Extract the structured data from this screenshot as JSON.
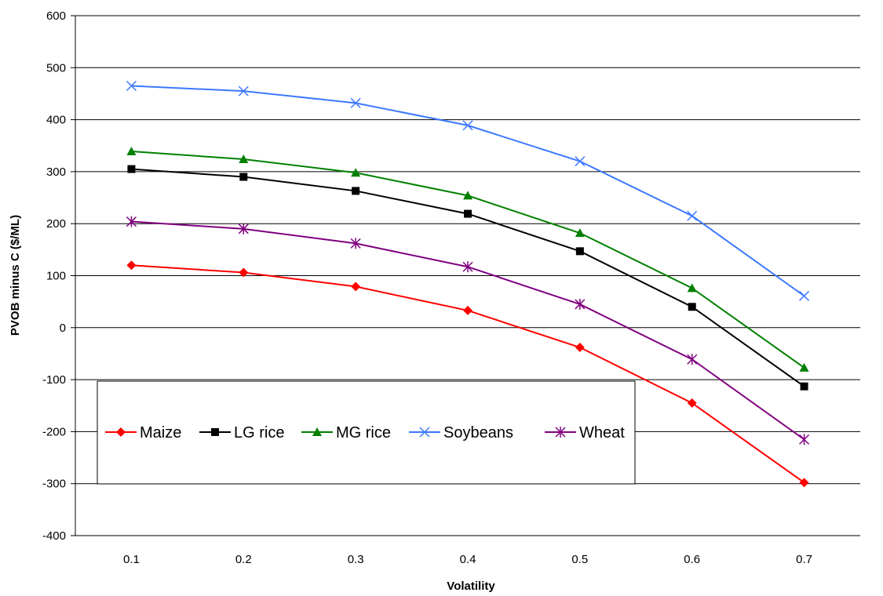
{
  "chart_data": {
    "type": "line",
    "title": "",
    "xlabel": "Volatility",
    "ylabel": "PVOB minus C ($/ML)",
    "x": [
      "0.1",
      "0.2",
      "0.3",
      "0.4",
      "0.5",
      "0.6",
      "0.7"
    ],
    "ylim": [
      -400,
      600
    ],
    "yticks": [
      "600",
      "500",
      "400",
      "300",
      "200",
      "100",
      "0",
      "-100",
      "-200",
      "-300",
      "-400"
    ],
    "grid": "horizontal",
    "legend_position": "inside-lower-left",
    "series": [
      {
        "name": "Maize",
        "color": "#ff0000",
        "marker": "diamond",
        "values": [
          120,
          106,
          79,
          33,
          -38,
          -145,
          -298
        ]
      },
      {
        "name": "LG rice",
        "color": "#000000",
        "marker": "square",
        "values": [
          305,
          290,
          263,
          219,
          147,
          40,
          -113
        ]
      },
      {
        "name": "MG rice",
        "color": "#008000",
        "marker": "triangle",
        "values": [
          339,
          324,
          298,
          254,
          182,
          76,
          -77
        ]
      },
      {
        "name": "Soybeans",
        "color": "#3c78ff",
        "marker": "x",
        "values": [
          465,
          455,
          432,
          389,
          320,
          215,
          61
        ]
      },
      {
        "name": "Wheat",
        "color": "#800080",
        "marker": "asterisk",
        "values": [
          204,
          190,
          162,
          117,
          45,
          -61,
          -215
        ]
      }
    ]
  }
}
